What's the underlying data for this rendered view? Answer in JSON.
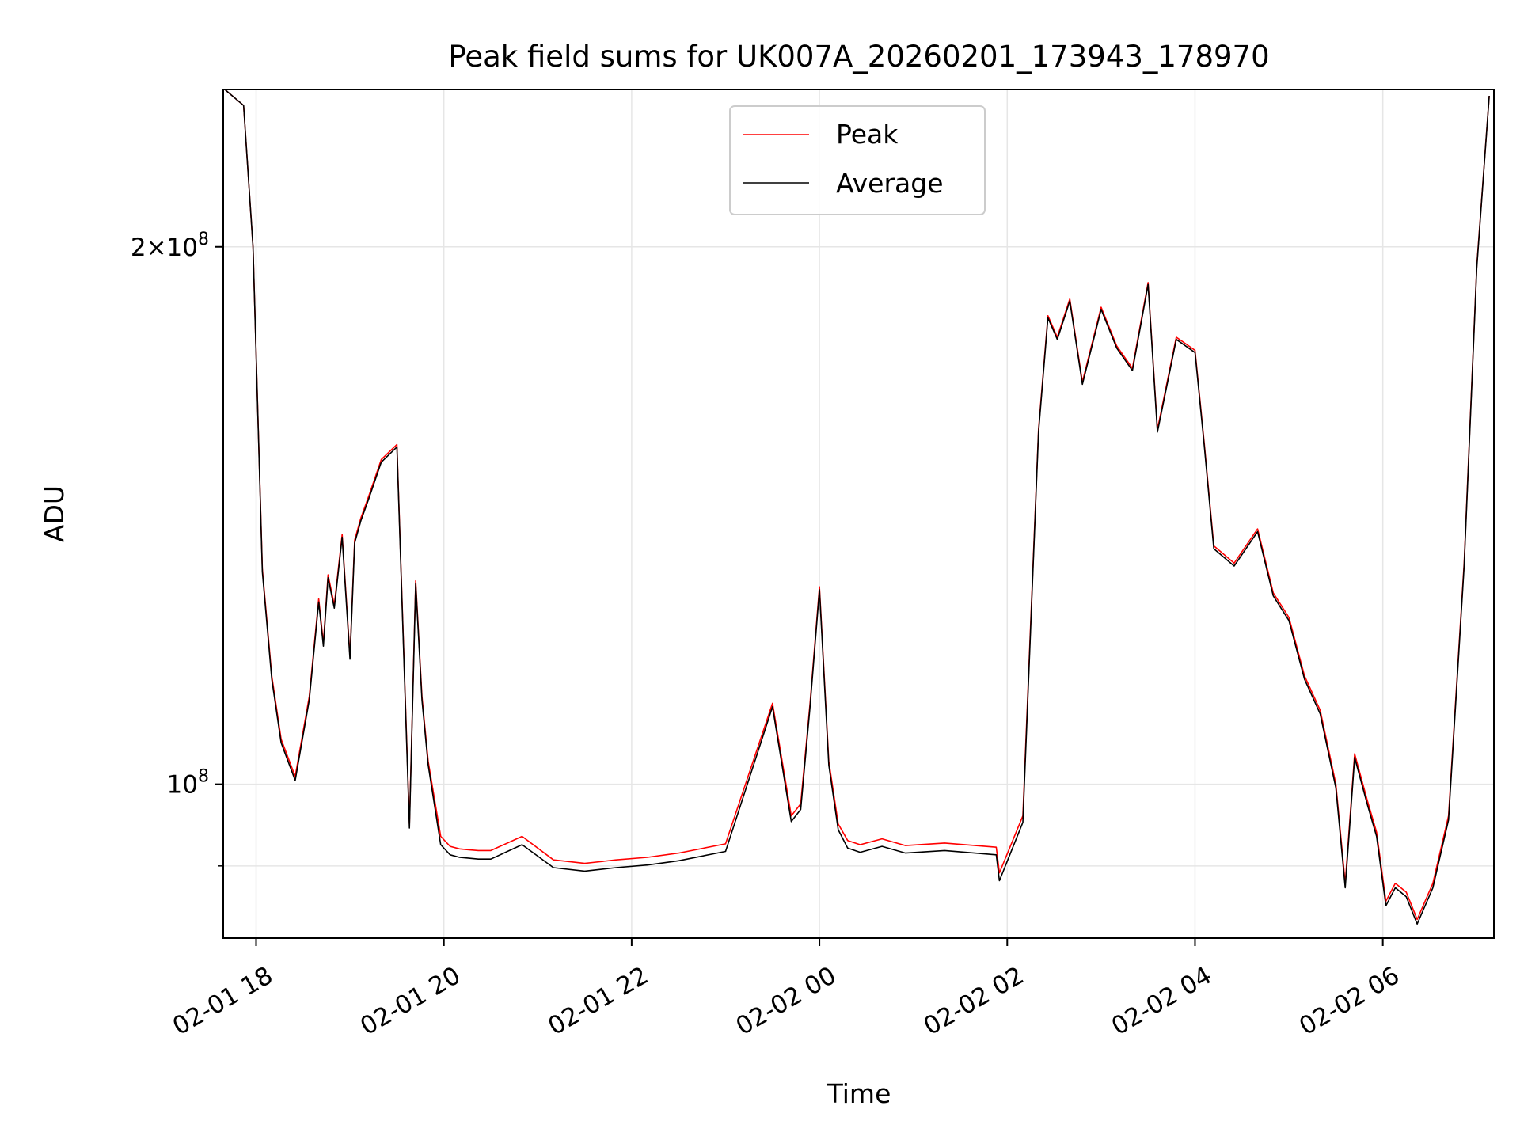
{
  "chart_data": {
    "type": "line",
    "title": "Peak field sums for UK007A_20260201_173943_178970",
    "xlabel": "Time",
    "ylabel": "ADU",
    "yscale": "log",
    "xlim": [
      "2026-02-01T17:39",
      "2026-02-02T07:11"
    ],
    "ylim": [
      82000000,
      245000000
    ],
    "grid": true,
    "legend_position": "top-center",
    "x_ticks": [
      "2026-02-01T18:00",
      "2026-02-01T20:00",
      "2026-02-01T22:00",
      "2026-02-02T00:00",
      "2026-02-02T02:00",
      "2026-02-02T04:00",
      "2026-02-02T06:00"
    ],
    "x_tick_labels": [
      "02-01 18",
      "02-01 20",
      "02-01 22",
      "02-02 00",
      "02-02 02",
      "02-02 04",
      "02-02 06"
    ],
    "y_ticks": [
      100000000,
      200000000
    ],
    "y_minor_ticks": [
      90000000
    ],
    "y_tick_labels": [
      {
        "mantissa": "",
        "exp": "8",
        "base": "10"
      },
      {
        "mantissa": "2×",
        "exp": "8",
        "base": "10"
      }
    ],
    "x": [
      "2026-02-01T17:40",
      "2026-02-01T17:52",
      "2026-02-01T17:58",
      "2026-02-01T18:04",
      "2026-02-01T18:10",
      "2026-02-01T18:16",
      "2026-02-01T18:25",
      "2026-02-01T18:34",
      "2026-02-01T18:40",
      "2026-02-01T18:43",
      "2026-02-01T18:46",
      "2026-02-01T18:50",
      "2026-02-01T18:55",
      "2026-02-01T19:00",
      "2026-02-01T19:03",
      "2026-02-01T19:07",
      "2026-02-01T19:12",
      "2026-02-01T19:20",
      "2026-02-01T19:30",
      "2026-02-01T19:38",
      "2026-02-01T19:42",
      "2026-02-01T19:46",
      "2026-02-01T19:50",
      "2026-02-01T19:58",
      "2026-02-01T20:04",
      "2026-02-01T20:10",
      "2026-02-01T20:16",
      "2026-02-01T20:22",
      "2026-02-01T20:30",
      "2026-02-01T20:50",
      "2026-02-01T21:10",
      "2026-02-01T21:30",
      "2026-02-01T21:35",
      "2026-02-01T21:50",
      "2026-02-01T22:10",
      "2026-02-01T22:30",
      "2026-02-01T23:00",
      "2026-02-01T23:30",
      "2026-02-01T23:42",
      "2026-02-01T23:48",
      "2026-02-01T23:54",
      "2026-02-02T00:00",
      "2026-02-02T00:06",
      "2026-02-02T00:12",
      "2026-02-02T00:18",
      "2026-02-02T00:26",
      "2026-02-02T00:40",
      "2026-02-02T00:55",
      "2026-02-02T01:20",
      "2026-02-02T01:53",
      "2026-02-02T01:55",
      "2026-02-02T02:10",
      "2026-02-02T02:20",
      "2026-02-02T02:26",
      "2026-02-02T02:32",
      "2026-02-02T02:40",
      "2026-02-02T02:48",
      "2026-02-02T03:00",
      "2026-02-02T03:10",
      "2026-02-02T03:20",
      "2026-02-02T03:30",
      "2026-02-02T03:36",
      "2026-02-02T03:48",
      "2026-02-02T04:00",
      "2026-02-02T04:06",
      "2026-02-02T04:12",
      "2026-02-02T04:25",
      "2026-02-02T04:40",
      "2026-02-02T04:50",
      "2026-02-02T05:00",
      "2026-02-02T05:10",
      "2026-02-02T05:20",
      "2026-02-02T05:30",
      "2026-02-02T05:36",
      "2026-02-02T05:42",
      "2026-02-02T05:50",
      "2026-02-02T05:56",
      "2026-02-02T06:02",
      "2026-02-02T06:08",
      "2026-02-02T06:15",
      "2026-02-02T06:22",
      "2026-02-02T06:32",
      "2026-02-02T06:42",
      "2026-02-02T06:52",
      "2026-02-02T07:00",
      "2026-02-02T07:08"
    ],
    "series": [
      {
        "name": "Peak",
        "color": "#ff0000",
        "values": [
          245000000,
          240000000,
          200000000,
          132000000,
          115000000,
          106000000,
          101000000,
          112000000,
          127000000,
          120000000,
          131000000,
          126000000,
          138000000,
          118000000,
          137000000,
          141000000,
          145000000,
          152000000,
          155000000,
          95000000,
          130000000,
          112000000,
          103000000,
          93500000,
          92300000,
          92000000,
          91900000,
          91800000,
          91800000,
          93500000,
          90700000,
          90300000,
          90400000,
          90700000,
          91000000,
          91500000,
          92600000,
          111000000,
          96000000,
          97500000,
          111000000,
          129000000,
          103000000,
          95000000,
          93000000,
          92500000,
          93200000,
          92400000,
          92700000,
          92200000,
          89200000,
          96000000,
          158000000,
          183000000,
          178000000,
          187000000,
          168000000,
          185000000,
          176000000,
          171000000,
          191000000,
          158000000,
          178000000,
          175000000,
          155000000,
          136000000,
          133000000,
          139000000,
          128000000,
          124000000,
          115000000,
          110000000,
          100000000,
          88000000,
          104000000,
          98000000,
          94000000,
          86000000,
          88000000,
          87000000,
          84000000,
          88000000,
          96000000,
          133000000,
          195000000,
          243000000
        ]
      },
      {
        "name": "Average",
        "color": "#000000",
        "values": [
          245000000,
          240000000,
          200000000,
          131500000,
          114500000,
          105500000,
          100500000,
          111500000,
          126500000,
          119500000,
          130500000,
          125500000,
          137500000,
          117500000,
          136500000,
          140500000,
          144500000,
          151500000,
          154500000,
          94500000,
          129500000,
          111500000,
          102500000,
          92500000,
          91300000,
          91000000,
          90900000,
          90800000,
          90800000,
          92500000,
          89800000,
          89400000,
          89500000,
          89800000,
          90100000,
          90600000,
          91700000,
          110500000,
          95300000,
          96800000,
          110500000,
          128500000,
          102500000,
          94300000,
          92100000,
          91600000,
          92300000,
          91500000,
          91800000,
          91300000,
          88300000,
          95200000,
          157500000,
          182500000,
          177500000,
          186500000,
          167500000,
          184500000,
          175500000,
          170500000,
          190500000,
          157500000,
          177500000,
          174500000,
          154500000,
          135500000,
          132500000,
          138500000,
          127500000,
          123500000,
          114500000,
          109500000,
          99500000,
          87500000,
          103500000,
          97500000,
          93500000,
          85500000,
          87500000,
          86500000,
          83500000,
          87500000,
          95500000,
          132500000,
          194500000,
          243000000
        ]
      }
    ]
  }
}
